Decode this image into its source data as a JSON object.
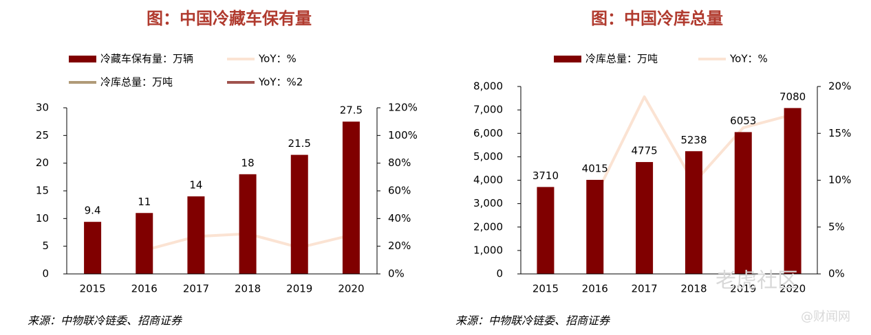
{
  "chart_data": [
    {
      "type": "bar",
      "title": "图：中国冷藏车保有量",
      "source": "来源：中物联冷链委、招商证券",
      "categories": [
        "2015",
        "2016",
        "2017",
        "2018",
        "2019",
        "2020"
      ],
      "series": [
        {
          "name": "冷藏车保有量：万辆",
          "type": "bar",
          "color": "#800000",
          "values": [
            9.4,
            11,
            14,
            18,
            21.5,
            27.5
          ]
        },
        {
          "name": "YoY：%",
          "type": "line",
          "axis": "y2",
          "color": "#fbe3d3",
          "values": [
            null,
            17,
            27,
            29,
            19,
            28
          ]
        },
        {
          "name": "冷库总量：万吨",
          "type": "line",
          "color": "#b09a78",
          "values": [
            null,
            null,
            null,
            null,
            null,
            null
          ]
        },
        {
          "name": "YoY：%2",
          "type": "line",
          "axis": "y2",
          "color": "#a0524d",
          "values": [
            null,
            null,
            null,
            null,
            null,
            null
          ]
        }
      ],
      "ylim": [
        0,
        30
      ],
      "yticks": [
        0,
        5,
        10,
        15,
        20,
        25,
        30
      ],
      "y2lim": [
        0,
        120
      ],
      "y2ticks": [
        {
          "value": 0,
          "label": "0%"
        },
        {
          "value": 20,
          "label": "20%"
        },
        {
          "value": 40,
          "label": "40%"
        },
        {
          "value": 60,
          "label": "60%"
        },
        {
          "value": 80,
          "label": "80%"
        },
        {
          "value": 100,
          "label": "100%"
        },
        {
          "value": 120,
          "label": "120%"
        }
      ]
    },
    {
      "type": "bar",
      "title": "图：中国冷库总量",
      "source": "来源：中物联冷链委、招商证券",
      "categories": [
        "2015",
        "2016",
        "2017",
        "2018",
        "2019",
        "2020"
      ],
      "series": [
        {
          "name": "冷库总量：万吨",
          "type": "bar",
          "color": "#800000",
          "values": [
            3710,
            4015,
            4775,
            5238,
            6053,
            7080
          ]
        },
        {
          "name": "YoY：%",
          "type": "line",
          "axis": "y2",
          "color": "#fbe3d3",
          "values": [
            null,
            8.2,
            18.9,
            9.7,
            15.6,
            17.0
          ]
        }
      ],
      "ylim": [
        0,
        8000
      ],
      "yticks": [
        0,
        {
          "value": 1000,
          "label": "1,000"
        },
        {
          "value": 2000,
          "label": "2,000"
        },
        {
          "value": 3000,
          "label": "3,000"
        },
        {
          "value": 4000,
          "label": "4,000"
        },
        {
          "value": 5000,
          "label": "5,000"
        },
        {
          "value": 6000,
          "label": "6,000"
        },
        {
          "value": 7000,
          "label": "7,000"
        },
        {
          "value": 8000,
          "label": "8,000"
        }
      ],
      "y2lim": [
        0,
        20
      ],
      "y2ticks": [
        {
          "value": 0,
          "label": "0%"
        },
        {
          "value": 5,
          "label": "5%"
        },
        {
          "value": 10,
          "label": "10%"
        },
        {
          "value": 15,
          "label": "15%"
        },
        {
          "value": 20,
          "label": "20%"
        }
      ]
    }
  ],
  "watermarks": [
    "老虎社区",
    "@财闻网"
  ]
}
